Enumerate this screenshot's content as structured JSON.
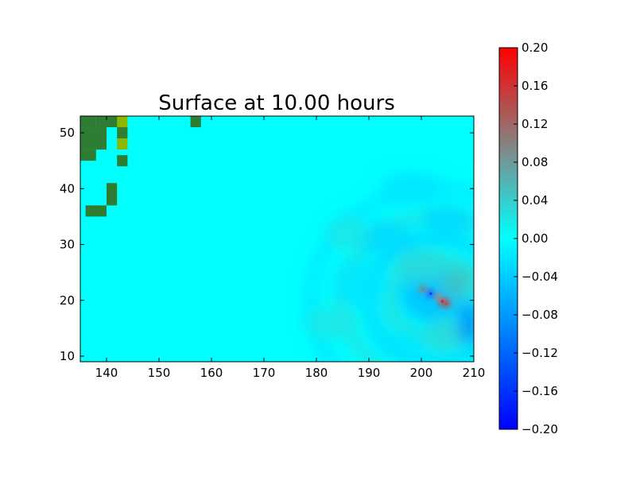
{
  "chart_data": {
    "type": "heatmap",
    "title": "Surface at 10.00 hours",
    "xlabel": "",
    "ylabel": "",
    "xlim": [
      135,
      210
    ],
    "ylim": [
      9,
      53
    ],
    "x_ticks": [
      140,
      150,
      160,
      170,
      180,
      190,
      200,
      210
    ],
    "y_ticks": [
      10,
      20,
      30,
      40,
      50
    ],
    "colorbar": {
      "range": [
        -0.2,
        0.2
      ],
      "ticks": [
        "0.20",
        "0.16",
        "0.12",
        "0.08",
        "0.04",
        "0.00",
        "−0.04",
        "−0.08",
        "−0.12",
        "−0.16",
        "−0.20"
      ],
      "colors": {
        "min": "#0000ff",
        "zero": "#00ffff",
        "max": "#ff0000",
        "mid_positive": "#6f9a9a"
      }
    },
    "background_value": 0.0,
    "land_color": "#2e7d32",
    "land_highlight_color": "#8db600",
    "land_cells": [
      {
        "x0": 135,
        "x1": 138,
        "y0": 51,
        "y1": 53
      },
      {
        "x0": 138,
        "x1": 143,
        "y0": 51,
        "y1": 53
      },
      {
        "x0": 135,
        "x1": 140,
        "y0": 47,
        "y1": 51
      },
      {
        "x0": 135,
        "x1": 138,
        "y0": 45,
        "y1": 47
      },
      {
        "x0": 142,
        "x1": 144,
        "y0": 49,
        "y1": 51
      },
      {
        "x0": 142,
        "x1": 144,
        "y0": 44,
        "y1": 46
      },
      {
        "x0": 140,
        "x1": 142,
        "y0": 37,
        "y1": 41
      },
      {
        "x0": 136,
        "x1": 140,
        "y0": 35,
        "y1": 37
      },
      {
        "x0": 156,
        "x1": 158,
        "y0": 51,
        "y1": 53
      }
    ],
    "land_highlight_cells": [
      {
        "x0": 142,
        "x1": 144,
        "y0": 51,
        "y1": 53
      },
      {
        "x0": 142,
        "x1": 144,
        "y0": 47,
        "y1": 49
      }
    ],
    "wave_source": {
      "x": 203,
      "y": 20
    },
    "wave_features": [
      {
        "x": 202,
        "y": 21,
        "rx": 6,
        "ry": 5,
        "value": -0.05
      },
      {
        "x": 200,
        "y": 26,
        "rx": 5,
        "ry": 3,
        "value": 0.03
      },
      {
        "x": 207,
        "y": 23,
        "rx": 3,
        "ry": 3,
        "value": 0.05
      },
      {
        "x": 205,
        "y": 14,
        "rx": 4,
        "ry": 3,
        "value": 0.03
      },
      {
        "x": 209,
        "y": 16,
        "rx": 2,
        "ry": 4,
        "value": -0.09
      },
      {
        "x": 193,
        "y": 31,
        "rx": 6,
        "ry": 3,
        "value": -0.03
      },
      {
        "x": 205,
        "y": 34,
        "rx": 5,
        "ry": 3,
        "value": -0.03
      },
      {
        "x": 188,
        "y": 23,
        "rx": 5,
        "ry": 4,
        "value": -0.02
      },
      {
        "x": 196,
        "y": 12,
        "rx": 5,
        "ry": 2,
        "value": -0.02
      },
      {
        "x": 183,
        "y": 16,
        "rx": 5,
        "ry": 3,
        "value": 0.02
      },
      {
        "x": 186,
        "y": 32,
        "rx": 4,
        "ry": 3,
        "value": 0.02
      },
      {
        "x": 198,
        "y": 40,
        "rx": 6,
        "ry": 3,
        "value": -0.02
      }
    ],
    "rings": [
      {
        "rx": 9,
        "ry": 7,
        "value": 0.02
      },
      {
        "rx": 13,
        "ry": 11,
        "value": -0.02
      },
      {
        "rx": 18,
        "ry": 15,
        "value": 0.015
      },
      {
        "rx": 24,
        "ry": 20,
        "value": -0.012
      }
    ],
    "islands": [
      {
        "x": 200.3,
        "y": 22.0,
        "value": 0.1
      },
      {
        "x": 201.8,
        "y": 21.2,
        "value": -0.15
      },
      {
        "x": 203.0,
        "y": 20.8,
        "value": 0.08
      },
      {
        "x": 204.0,
        "y": 19.8,
        "value": 0.18
      },
      {
        "x": 204.8,
        "y": 19.4,
        "value": 0.14
      }
    ]
  }
}
